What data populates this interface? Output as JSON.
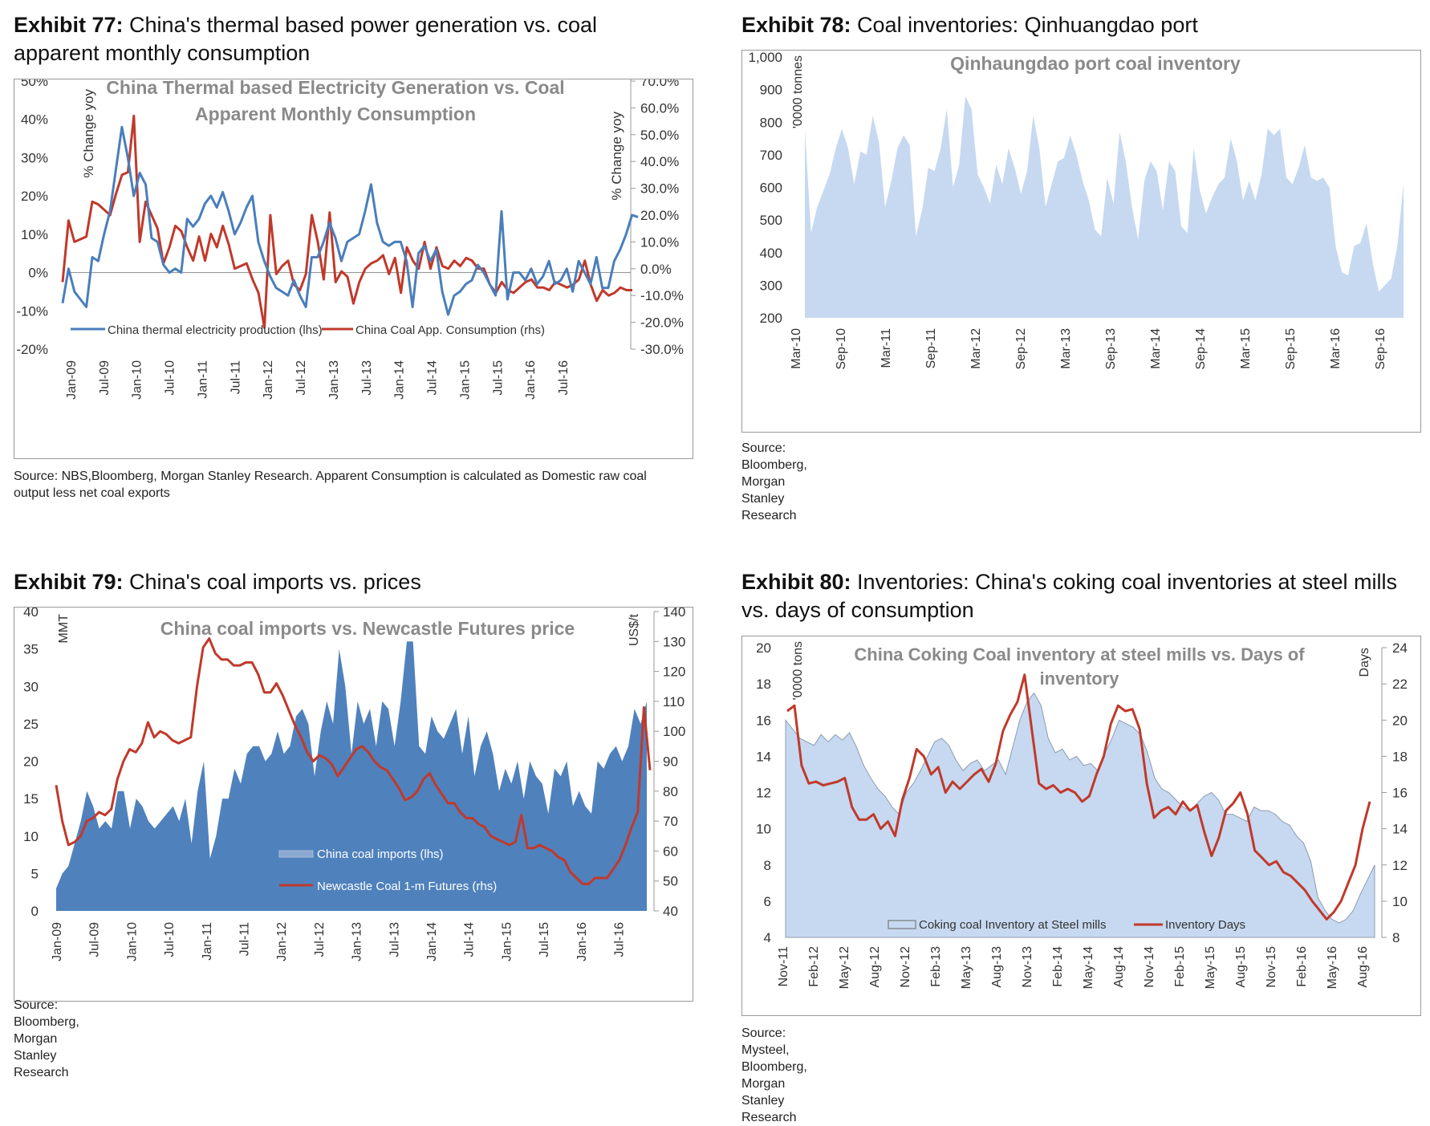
{
  "exhibits": {
    "ex77": {
      "label": "Exhibit 77:",
      "title": "China's thermal based power generation vs. coal apparent monthly consumption",
      "source": "Source: NBS,Bloomberg, Morgan Stanley Research. Apparent Consumption is calculated as Domestic raw coal output less net coal exports"
    },
    "ex78": {
      "label": "Exhibit 78:",
      "title": "Coal inventories: Qinhuangdao port",
      "source": "Source: Bloomberg, Morgan Stanley Research"
    },
    "ex79": {
      "label": "Exhibit 79:",
      "title": "China's coal imports vs. prices",
      "source": "Source: Bloomberg, Morgan Stanley Research"
    },
    "ex80": {
      "label": "Exhibit 80:",
      "title": "Inventories: China's coking coal inventories at steel mills vs. days of consumption",
      "source": "Source: Mysteel, Bloomberg, Morgan Stanley Research"
    }
  },
  "colors": {
    "blue_line": "#4a7ebb",
    "red_line": "#c0392b",
    "light_fill": "#c6d9f0",
    "dark_fill": "#4f81bd",
    "title_gray": "#8a8a8a"
  },
  "chart_data": [
    {
      "id": "ex77",
      "type": "line",
      "title": "China Thermal based Electricity Generation vs. Coal Apparent Monthly Consumption",
      "title_lines": [
        "China Thermal based Electricity Generation vs. Coal",
        "Apparent Monthly Consumption"
      ],
      "ylabel": "% Change yoy",
      "y2label": "% Change yoy",
      "ylim": [
        -20,
        50
      ],
      "y2lim": [
        -30,
        70
      ],
      "yticks": [
        "-20%",
        "-10%",
        "0%",
        "10%",
        "20%",
        "30%",
        "40%",
        "50%"
      ],
      "y2ticks": [
        "-30.0%",
        "-20.0%",
        "-10.0%",
        "0.0%",
        "10.0%",
        "20.0%",
        "30.0%",
        "40.0%",
        "50.0%",
        "60.0%",
        "70.0%"
      ],
      "xticks": [
        "Jan-09",
        "Jul-09",
        "Jan-10",
        "Jul-10",
        "Jan-11",
        "Jul-11",
        "Jan-12",
        "Jul-12",
        "Jan-13",
        "Jul-13",
        "Jan-14",
        "Jul-14",
        "Jan-15",
        "Jul-15",
        "Jan-16",
        "Jul-16"
      ],
      "legend": [
        "China thermal electricity production (lhs)",
        "China Coal App. Consumption (rhs)"
      ],
      "series": [
        {
          "name": "China thermal electricity production (lhs)",
          "axis": "left",
          "values": [
            -8,
            1,
            -5,
            -7,
            -9,
            4,
            3,
            10,
            16,
            27,
            38,
            30,
            20,
            26,
            23,
            9,
            8,
            2,
            0,
            1,
            0,
            14,
            12,
            14,
            18,
            20,
            17,
            21,
            16,
            10,
            13,
            17,
            20,
            8,
            3,
            -1,
            -4,
            -5,
            -6,
            -2,
            -6,
            -9,
            4,
            4,
            8,
            13,
            9,
            3,
            8,
            9,
            10,
            16,
            23,
            13,
            8,
            7,
            8,
            8,
            3,
            -9,
            5,
            7,
            3,
            6,
            -5,
            -11,
            -6,
            -5,
            -3,
            -2,
            2,
            0,
            -3,
            -6,
            16,
            -7,
            0,
            0,
            -2,
            1,
            -3,
            -1,
            3,
            -3,
            -2,
            1,
            -5,
            3,
            0,
            -3,
            4,
            -4,
            -4,
            3,
            6,
            10,
            15,
            14.5
          ]
        },
        {
          "name": "China Coal App. Consumption (rhs)",
          "axis": "right",
          "values": [
            -5,
            18,
            10,
            11,
            12,
            25,
            24,
            22,
            20,
            28,
            35,
            36,
            57,
            10,
            25,
            20,
            15,
            2,
            8,
            16,
            14,
            8,
            3,
            12,
            3,
            13,
            8,
            16,
            9,
            0,
            1,
            2,
            -4,
            -9,
            -22,
            20,
            -2,
            1,
            3,
            -6,
            -8,
            -2,
            20,
            10,
            -4,
            21,
            -5,
            -1,
            -3,
            -13,
            -5,
            0,
            2,
            3,
            5,
            -2,
            4,
            -9,
            8,
            3,
            0,
            10,
            0,
            8,
            1,
            0,
            3,
            1,
            4,
            3,
            0,
            0,
            -6,
            -9,
            -5,
            -8,
            -9,
            -7,
            -5,
            -4,
            -7,
            -7,
            -8,
            -5,
            -6,
            -7,
            -6,
            -4,
            3,
            -6,
            -12,
            -8,
            -10,
            -9,
            -7,
            -8,
            -8
          ]
        }
      ]
    },
    {
      "id": "ex78",
      "type": "area",
      "title": "Qinhaungdao port coal inventory",
      "ylabel": "'0000 tonnes",
      "ylim": [
        200,
        1000
      ],
      "yticks": [
        "200",
        "300",
        "400",
        "500",
        "600",
        "700",
        "800",
        "900",
        "1,000"
      ],
      "xticks": [
        "Mar-10",
        "Sep-10",
        "Mar-11",
        "Sep-11",
        "Mar-12",
        "Sep-12",
        "Mar-13",
        "Sep-13",
        "Mar-14",
        "Sep-14",
        "Mar-15",
        "Sep-15",
        "Mar-16",
        "Sep-16"
      ],
      "series": [
        {
          "name": "Qinhaungdao port coal inventory",
          "values": [
            780,
            460,
            540,
            590,
            640,
            720,
            780,
            720,
            610,
            710,
            700,
            820,
            740,
            540,
            620,
            720,
            760,
            730,
            450,
            530,
            660,
            650,
            720,
            840,
            600,
            670,
            880,
            840,
            640,
            600,
            550,
            670,
            610,
            720,
            660,
            580,
            650,
            820,
            720,
            540,
            610,
            680,
            690,
            760,
            700,
            620,
            560,
            470,
            450,
            630,
            550,
            770,
            680,
            540,
            440,
            620,
            680,
            650,
            530,
            680,
            650,
            480,
            460,
            720,
            590,
            520,
            570,
            610,
            630,
            750,
            680,
            560,
            620,
            560,
            640,
            780,
            760,
            780,
            630,
            610,
            660,
            730,
            630,
            620,
            630,
            600,
            420,
            340,
            330,
            420,
            430,
            490,
            370,
            280,
            300,
            320,
            420,
            610
          ]
        }
      ]
    },
    {
      "id": "ex79",
      "type": "area",
      "title": "China coal imports vs. Newcastle Futures price",
      "ylabel": "MMT",
      "y2label": "US$/t",
      "ylim": [
        0,
        40
      ],
      "y2lim": [
        40,
        140
      ],
      "yticks": [
        "0",
        "5",
        "10",
        "15",
        "20",
        "25",
        "30",
        "35",
        "40"
      ],
      "y2ticks": [
        "40",
        "50",
        "60",
        "70",
        "80",
        "90",
        "100",
        "110",
        "120",
        "130",
        "140"
      ],
      "xticks": [
        "Jan-09",
        "Jul-09",
        "Jan-10",
        "Jul-10",
        "Jan-11",
        "Jul-11",
        "Jan-12",
        "Jul-12",
        "Jan-13",
        "Jul-13",
        "Jan-14",
        "Jul-14",
        "Jan-15",
        "Jul-15",
        "Jan-16",
        "Jul-16"
      ],
      "legend": [
        "China coal imports (lhs)",
        "Newcastle Coal 1-m Futures (rhs)"
      ],
      "series": [
        {
          "name": "China coal imports (lhs)",
          "axis": "left",
          "type": "area",
          "values": [
            3,
            5,
            6,
            9,
            12,
            16,
            14,
            11,
            12,
            11,
            16,
            16,
            11,
            15,
            14,
            12,
            11,
            12,
            13,
            14,
            12,
            15,
            9,
            16,
            20,
            7,
            10,
            15,
            15,
            19,
            17,
            21,
            22,
            22,
            20,
            21,
            24,
            21,
            22,
            26,
            27,
            25,
            18,
            24,
            28,
            25,
            35,
            30,
            21,
            28,
            25,
            27,
            22,
            28,
            27,
            22,
            28,
            36,
            36,
            22,
            21,
            26,
            24,
            23,
            25,
            27,
            21,
            26,
            18,
            22,
            24,
            21,
            16,
            19,
            17,
            20,
            15,
            20,
            18,
            17,
            13,
            19,
            18,
            20,
            14,
            16,
            14,
            13,
            20,
            19,
            21,
            22,
            20,
            22,
            27,
            25,
            28
          ]
        },
        {
          "name": "Newcastle Coal 1-m Futures (rhs)",
          "axis": "right",
          "type": "line",
          "values": [
            82,
            70,
            62,
            63,
            65,
            70,
            71,
            73,
            72,
            74,
            84,
            90,
            94,
            93,
            96,
            103,
            98,
            100,
            99,
            97,
            96,
            97,
            98,
            115,
            128,
            131,
            126,
            124,
            124,
            122,
            122,
            123,
            123,
            119,
            113,
            113,
            116,
            112,
            107,
            102,
            98,
            93,
            90,
            92,
            91,
            89,
            85,
            88,
            91,
            94,
            95,
            93,
            90,
            88,
            87,
            84,
            81,
            77,
            78,
            80,
            84,
            86,
            82,
            79,
            76,
            76,
            73,
            71,
            71,
            69,
            68,
            65,
            64,
            63,
            62,
            63,
            72,
            61,
            61,
            62,
            61,
            60,
            58,
            57,
            53,
            51,
            49,
            49,
            51,
            51,
            51,
            54,
            57,
            62,
            68,
            73,
            108,
            87
          ]
        }
      ]
    },
    {
      "id": "ex80",
      "type": "area",
      "title": "China Coking Coal inventory at steel mills vs. Days of inventory",
      "title_lines": [
        "China Coking Coal inventory at steel mills vs. Days of",
        "inventory"
      ],
      "ylabel": "'0000 tons",
      "y2label": "Days",
      "ylim": [
        4,
        20
      ],
      "y2lim": [
        8,
        24
      ],
      "yticks": [
        "4",
        "6",
        "8",
        "10",
        "12",
        "14",
        "16",
        "18",
        "20"
      ],
      "y2ticks": [
        "8",
        "10",
        "12",
        "14",
        "16",
        "18",
        "20",
        "22",
        "24"
      ],
      "xticks": [
        "Nov-11",
        "Feb-12",
        "May-12",
        "Aug-12",
        "Nov-12",
        "Feb-13",
        "May-13",
        "Aug-13",
        "Nov-13",
        "Feb-14",
        "May-14",
        "Aug-14",
        "Nov-14",
        "Feb-15",
        "May-15",
        "Aug-15",
        "Nov-15",
        "Feb-16",
        "May-16",
        "Aug-16"
      ],
      "legend": [
        "Coking coal Inventory at Steel mills",
        "Inventory Days"
      ],
      "series": [
        {
          "name": "Coking coal Inventory at Steel mills",
          "axis": "left",
          "type": "area",
          "values": [
            16,
            15.5,
            15,
            14.8,
            14.6,
            15.2,
            14.8,
            15.2,
            14.9,
            15.3,
            14.5,
            13.5,
            12.8,
            12.2,
            11.8,
            11.2,
            10.8,
            12.0,
            12.5,
            13.2,
            14.0,
            14.8,
            15.0,
            14.6,
            13.8,
            13.2,
            13.6,
            13.8,
            13.2,
            13.5,
            13.8,
            13.0,
            14.5,
            16.0,
            17.0,
            17.5,
            16.8,
            15.0,
            14.2,
            14.4,
            13.8,
            14.0,
            13.5,
            13.6,
            13.2,
            14.2,
            15.0,
            16.0,
            15.8,
            15.6,
            15.2,
            14.2,
            12.8,
            12.2,
            12.0,
            11.6,
            11.2,
            11.0,
            11.4,
            11.8,
            12.0,
            11.6,
            10.8,
            10.8,
            10.6,
            10.4,
            11.2,
            11.0,
            11.0,
            10.8,
            10.4,
            10.2,
            9.6,
            9.2,
            8.2,
            6.2,
            5.5,
            5.0,
            4.8,
            5.0,
            5.5,
            6.4,
            7.2,
            8.0
          ]
        },
        {
          "name": "Inventory Days",
          "axis": "right",
          "type": "line",
          "values": [
            20.5,
            20.8,
            17.5,
            16.5,
            16.6,
            16.4,
            16.5,
            16.6,
            16.8,
            15.2,
            14.5,
            14.5,
            14.8,
            14.0,
            14.4,
            13.6,
            15.6,
            16.8,
            18.4,
            18.0,
            17.0,
            17.4,
            16.0,
            16.6,
            16.2,
            16.6,
            17.0,
            17.3,
            16.6,
            17.6,
            19.4,
            20.3,
            21.0,
            22.5,
            19.5,
            16.5,
            16.2,
            16.4,
            16.0,
            16.2,
            16.0,
            15.5,
            15.8,
            17.0,
            18.0,
            19.8,
            20.8,
            20.5,
            20.6,
            19.5,
            16.5,
            14.6,
            15.0,
            15.2,
            14.8,
            15.5,
            15.0,
            15.3,
            13.8,
            12.5,
            13.5,
            15.0,
            15.4,
            16.0,
            14.8,
            12.8,
            12.4,
            12.0,
            12.2,
            11.6,
            11.4,
            11.0,
            10.6,
            10.0,
            9.5,
            9.0,
            9.4,
            10.0,
            11.0,
            12.0,
            14.0,
            15.5
          ]
        }
      ]
    }
  ]
}
